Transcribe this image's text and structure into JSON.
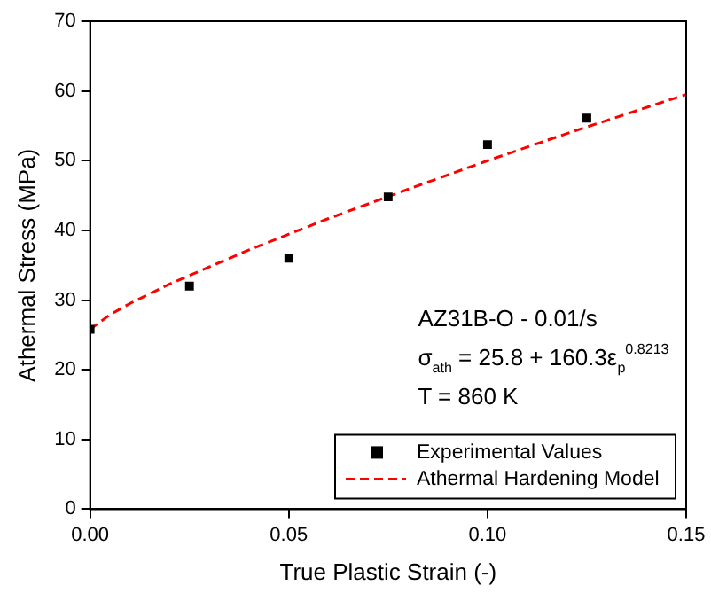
{
  "chart_data": {
    "type": "scatter",
    "xlabel": "True Plastic Strain (-)",
    "ylabel": "Athermal Stress (MPa)",
    "xlim": [
      0,
      0.15
    ],
    "xticks": [
      {
        "value": 0,
        "label": "0.00"
      },
      {
        "value": 0.05,
        "label": "0.05"
      },
      {
        "value": 0.1,
        "label": "0.10"
      },
      {
        "value": 0.15,
        "label": "0.15"
      }
    ],
    "ylim": [
      0,
      70
    ],
    "yticks": [
      0,
      10,
      20,
      30,
      40,
      50,
      60,
      70
    ],
    "grid": false,
    "legend": "bottom right",
    "annotations": [
      "AZ31B-O - 0.01/s",
      "σ$_{ath}$ = 25.8 + 160.3ε$_{p}$$^{0.8213}$",
      "T = 860 K"
    ],
    "series": [
      {
        "name": "Experimental Values",
        "type": "scatter",
        "color": "#000000",
        "marker": "square",
        "x": [
          0,
          0.025,
          0.05,
          0.075,
          0.1,
          0.125
        ],
        "values": [
          25.8,
          32,
          36,
          44.8,
          52.3,
          56.1
        ]
      },
      {
        "name": "Athermal Hardening Model",
        "type": "line",
        "color": "#ff0000",
        "marker": "none",
        "line_style": "dashed",
        "x": [
          0,
          0.005,
          0.01,
          0.02,
          0.04,
          0.06,
          0.08,
          0.1,
          0.12,
          0.15
        ],
        "values": [
          25.8,
          27.9,
          29.5,
          32.3,
          37.2,
          41.7,
          45.9,
          50.0,
          53.9,
          59.5
        ]
      }
    ]
  }
}
